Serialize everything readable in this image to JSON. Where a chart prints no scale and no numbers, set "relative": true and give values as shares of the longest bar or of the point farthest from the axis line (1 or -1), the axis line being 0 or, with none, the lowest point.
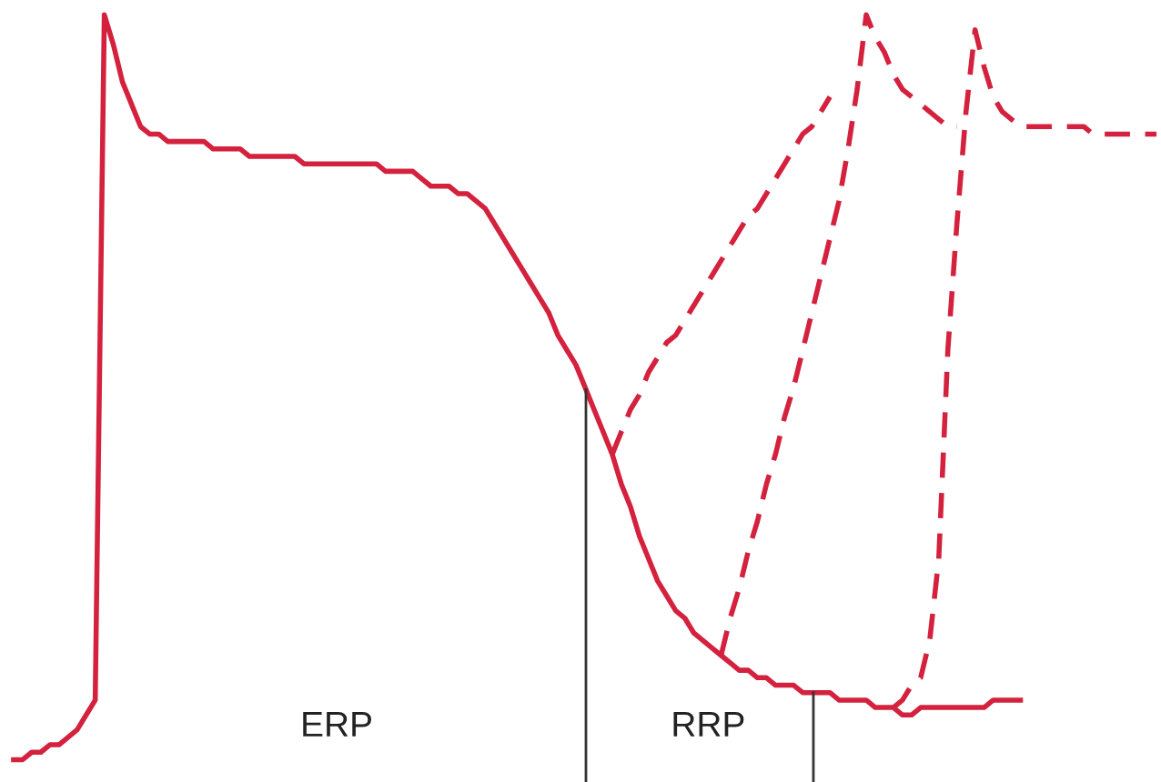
{
  "chart_data": {
    "type": "line",
    "relative": true,
    "legend": false,
    "marker": "none",
    "categories": [
      null,
      null,
      null,
      null,
      null,
      null,
      null,
      null,
      null,
      null,
      null,
      null,
      null,
      null,
      null,
      null,
      null,
      null,
      null,
      null,
      null,
      null,
      null,
      null,
      null,
      null,
      null,
      null,
      null,
      null,
      null,
      null,
      null,
      null,
      null,
      null,
      null,
      null,
      null,
      null,
      null,
      null,
      null,
      null,
      null,
      null,
      null,
      null,
      null,
      null,
      null,
      null,
      null,
      null,
      null,
      null,
      null,
      null,
      null,
      null,
      null,
      null,
      null,
      null,
      null,
      null,
      null,
      null,
      null,
      null,
      null,
      null,
      null,
      null,
      null,
      null,
      null,
      null,
      null,
      null,
      null,
      null,
      null,
      null,
      null,
      null,
      null,
      null,
      null,
      null,
      null,
      null,
      null,
      null,
      null,
      null,
      null,
      null,
      null,
      null,
      null,
      null,
      null,
      null,
      null,
      null,
      null,
      null,
      null,
      null,
      null,
      null,
      null,
      null,
      null,
      null,
      null,
      null,
      null,
      null,
      null,
      null,
      null,
      null,
      null,
      null,
      null,
      null
    ],
    "series": [
      {
        "color": "#d4213d",
        "line_style": "solid",
        "values": [
          null,
          0,
          0,
          0.01,
          0.01,
          0.02,
          0.02,
          0.03,
          0.04,
          0.06,
          0.08,
          1.0,
          0.96,
          0.91,
          0.88,
          0.85,
          0.84,
          0.84,
          0.83,
          0.83,
          0.83,
          0.83,
          0.83,
          0.82,
          0.82,
          0.82,
          0.82,
          0.81,
          0.81,
          0.81,
          0.81,
          0.81,
          0.81,
          0.8,
          0.8,
          0.8,
          0.8,
          0.8,
          0.8,
          0.8,
          0.8,
          0.8,
          0.79,
          0.79,
          0.79,
          0.79,
          0.78,
          0.77,
          0.77,
          0.77,
          0.76,
          0.76,
          0.75,
          0.74,
          0.72,
          0.7,
          0.68,
          0.66,
          0.64,
          0.62,
          0.6,
          0.57,
          0.55,
          0.53,
          0.5,
          0.47,
          0.44,
          0.41,
          0.37,
          0.34,
          0.3,
          0.27,
          0.24,
          0.22,
          0.2,
          0.19,
          0.17,
          0.16,
          0.15,
          0.14,
          0.13,
          0.12,
          0.12,
          0.11,
          0.11,
          0.1,
          0.1,
          0.1,
          0.09,
          0.09,
          0.09,
          0.09,
          0.08,
          0.08,
          0.08,
          0.08,
          0.07,
          0.07,
          0.07,
          0.06,
          0.06,
          0.07,
          0.07,
          0.07,
          0.07,
          0.07,
          0.07,
          0.07,
          0.07,
          0.08,
          0.08,
          0.08,
          0.08,
          null,
          null,
          null,
          null,
          null,
          null,
          null,
          null,
          null,
          null,
          null,
          null,
          null,
          null,
          null
        ]
      },
      {
        "color": "#d4213d",
        "line_style": "dashed",
        "values": [
          null,
          null,
          null,
          null,
          null,
          null,
          null,
          null,
          null,
          null,
          null,
          null,
          null,
          null,
          null,
          null,
          null,
          null,
          null,
          null,
          null,
          null,
          null,
          null,
          null,
          null,
          null,
          null,
          null,
          null,
          null,
          null,
          null,
          null,
          null,
          null,
          null,
          null,
          null,
          null,
          null,
          null,
          null,
          null,
          null,
          null,
          null,
          null,
          null,
          null,
          null,
          null,
          null,
          null,
          null,
          null,
          null,
          null,
          null,
          null,
          null,
          null,
          null,
          null,
          null,
          null,
          null,
          0.41,
          0.44,
          0.47,
          0.49,
          0.52,
          0.54,
          0.56,
          0.57,
          0.59,
          0.61,
          0.63,
          0.65,
          0.67,
          0.69,
          0.71,
          0.73,
          0.74,
          0.76,
          0.78,
          0.8,
          0.82,
          0.84,
          0.85,
          0.87,
          0.89,
          null,
          null,
          null,
          null,
          null,
          null,
          null,
          null,
          null,
          null,
          null,
          null,
          null,
          null,
          null,
          null,
          null,
          null,
          null,
          null,
          null,
          null,
          null,
          null,
          null,
          null,
          null,
          null,
          null,
          null,
          null,
          null,
          null,
          null,
          null,
          null
        ]
      },
      {
        "color": "#d4213d",
        "line_style": "dashed",
        "values": [
          null,
          null,
          null,
          null,
          null,
          null,
          null,
          null,
          null,
          null,
          null,
          null,
          null,
          null,
          null,
          null,
          null,
          null,
          null,
          null,
          null,
          null,
          null,
          null,
          null,
          null,
          null,
          null,
          null,
          null,
          null,
          null,
          null,
          null,
          null,
          null,
          null,
          null,
          null,
          null,
          null,
          null,
          null,
          null,
          null,
          null,
          null,
          null,
          null,
          null,
          null,
          null,
          null,
          null,
          null,
          null,
          null,
          null,
          null,
          null,
          null,
          null,
          null,
          null,
          null,
          null,
          null,
          null,
          null,
          null,
          null,
          null,
          null,
          null,
          null,
          null,
          null,
          null,
          null,
          0.14,
          0.19,
          0.23,
          0.28,
          0.32,
          0.37,
          0.41,
          0.46,
          0.5,
          0.55,
          0.6,
          0.65,
          0.7,
          0.75,
          0.82,
          0.9,
          1.0,
          0.97,
          0.95,
          0.92,
          0.9,
          0.89,
          0.88,
          0.87,
          0.86,
          0.85,
          0.85,
          null,
          null,
          null,
          null,
          null,
          null,
          null,
          null,
          null,
          null,
          null,
          null,
          null,
          null,
          null,
          null,
          null,
          null,
          null,
          null,
          null,
          null
        ]
      },
      {
        "color": "#d4213d",
        "line_style": "dashed",
        "values": [
          null,
          null,
          null,
          null,
          null,
          null,
          null,
          null,
          null,
          null,
          null,
          null,
          null,
          null,
          null,
          null,
          null,
          null,
          null,
          null,
          null,
          null,
          null,
          null,
          null,
          null,
          null,
          null,
          null,
          null,
          null,
          null,
          null,
          null,
          null,
          null,
          null,
          null,
          null,
          null,
          null,
          null,
          null,
          null,
          null,
          null,
          null,
          null,
          null,
          null,
          null,
          null,
          null,
          null,
          null,
          null,
          null,
          null,
          null,
          null,
          null,
          null,
          null,
          null,
          null,
          null,
          null,
          null,
          null,
          null,
          null,
          null,
          null,
          null,
          null,
          null,
          null,
          null,
          null,
          null,
          null,
          null,
          null,
          null,
          null,
          null,
          null,
          null,
          null,
          null,
          null,
          null,
          null,
          null,
          null,
          null,
          null,
          null,
          0.07,
          0.08,
          0.1,
          0.11,
          0.16,
          0.27,
          0.55,
          0.72,
          0.87,
          0.98,
          0.93,
          0.89,
          0.87,
          0.86,
          0.85,
          0.85,
          0.85,
          0.85,
          0.85,
          0.85,
          0.85,
          0.85,
          0.84,
          0.84,
          0.84,
          0.84,
          0.84,
          0.84,
          0.84,
          0.84
        ]
      }
    ],
    "annotations": [
      "ERP",
      "RRP"
    ]
  }
}
